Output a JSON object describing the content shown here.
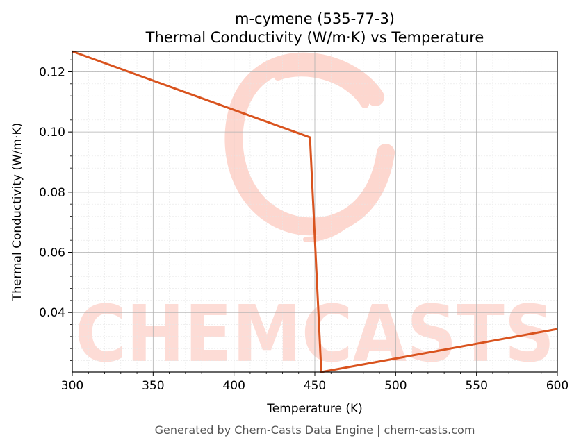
{
  "chart_data": {
    "type": "line",
    "title_line1": "m-cymene (535-77-3)",
    "title_line2": "Thermal Conductivity (W/m·K) vs Temperature",
    "xlabel": "Temperature (K)",
    "ylabel": "Thermal Conductivity (W/m·K)",
    "xlim": [
      300,
      600
    ],
    "ylim": [
      0.0202,
      0.1268
    ],
    "xticks": [
      300,
      350,
      400,
      450,
      500,
      550,
      600
    ],
    "yticks": [
      0.04,
      0.06,
      0.08,
      0.1,
      0.12
    ],
    "grid": true,
    "series": [
      {
        "color": "#d9531e",
        "x": [
          300,
          447,
          454,
          600
        ],
        "y": [
          0.1268,
          0.0982,
          0.0202,
          0.0345
        ]
      }
    ]
  },
  "watermark": "CHEMCASTS",
  "footer": "Generated by Chem-Casts Data Engine | chem-casts.com"
}
